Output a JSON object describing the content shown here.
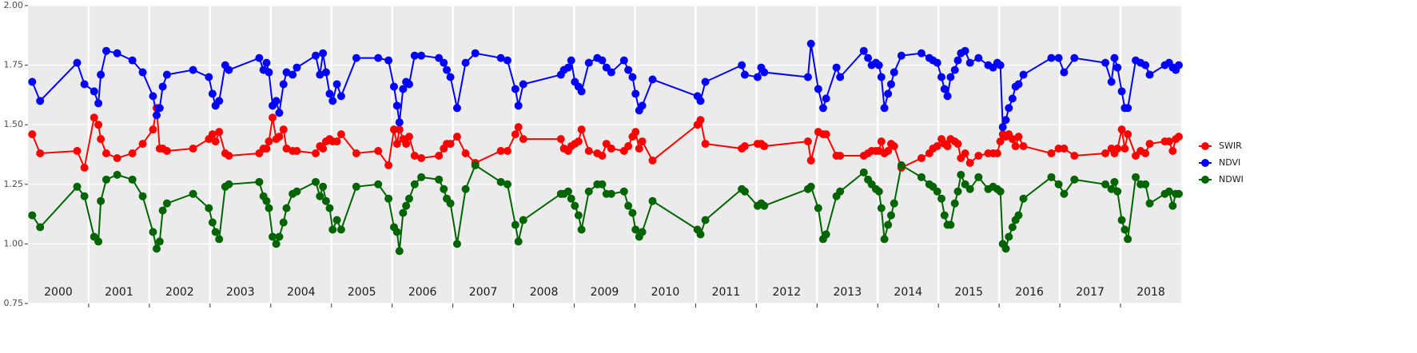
{
  "chart_data": {
    "type": "line",
    "x": [
      2000.07,
      2000.2,
      2000.81,
      2000.93,
      2001.09,
      2001.16,
      2001.2,
      2001.29,
      2001.47,
      2001.72,
      2001.89,
      2002.06,
      2002.12,
      2002.17,
      2002.22,
      2002.29,
      2002.72,
      2002.98,
      2003.04,
      2003.09,
      2003.15,
      2003.25,
      2003.31,
      2003.81,
      2003.88,
      2003.93,
      2003.97,
      2004.03,
      2004.09,
      2004.14,
      2004.21,
      2004.26,
      2004.36,
      2004.43,
      2004.74,
      2004.81,
      2004.86,
      2004.91,
      2004.97,
      2005.02,
      2005.09,
      2005.16,
      2005.41,
      2005.77,
      2005.94,
      2006.03,
      2006.08,
      2006.12,
      2006.18,
      2006.23,
      2006.28,
      2006.37,
      2006.48,
      2006.77,
      2006.85,
      2006.9,
      2006.96,
      2007.07,
      2007.21,
      2007.37,
      2007.79,
      2007.9,
      2008.03,
      2008.08,
      2008.16,
      2008.78,
      2008.83,
      2008.9,
      2008.95,
      2009.01,
      2009.07,
      2009.12,
      2009.24,
      2009.38,
      2009.46,
      2009.53,
      2009.61,
      2009.82,
      2009.89,
      2009.96,
      2010.01,
      2010.07,
      2010.12,
      2010.29,
      2011.03,
      2011.08,
      2011.16,
      2011.76,
      2011.81,
      2012.02,
      2012.08,
      2012.13,
      2012.85,
      2012.9,
      2013.02,
      2013.1,
      2013.15,
      2013.32,
      2013.38,
      2013.77,
      2013.84,
      2013.9,
      2013.97,
      2014.02,
      2014.06,
      2014.11,
      2014.17,
      2014.22,
      2014.27,
      2014.39,
      2014.72,
      2014.85,
      2014.91,
      2014.98,
      2015.05,
      2015.1,
      2015.15,
      2015.2,
      2015.27,
      2015.32,
      2015.37,
      2015.44,
      2015.52,
      2015.66,
      2015.82,
      2015.9,
      2015.97,
      2016.02,
      2016.06,
      2016.11,
      2016.16,
      2016.22,
      2016.27,
      2016.32,
      2016.4,
      2016.86,
      2016.98,
      2017.07,
      2017.24,
      2017.75,
      2017.85,
      2017.9,
      2017.95,
      2018.02,
      2018.07,
      2018.12,
      2018.25,
      2018.33,
      2018.41,
      2018.48,
      2018.73,
      2018.8,
      2018.86,
      2018.91,
      2018.96
    ],
    "series": [
      {
        "name": "SWIR",
        "color": "#ff0000",
        "values": [
          1.46,
          1.38,
          1.39,
          1.32,
          1.53,
          1.5,
          1.44,
          1.38,
          1.36,
          1.38,
          1.42,
          1.48,
          1.57,
          1.4,
          1.4,
          1.39,
          1.4,
          1.44,
          1.46,
          1.43,
          1.47,
          1.38,
          1.37,
          1.38,
          1.4,
          1.4,
          1.43,
          1.53,
          1.44,
          1.45,
          1.48,
          1.4,
          1.39,
          1.39,
          1.38,
          1.41,
          1.4,
          1.43,
          1.44,
          1.43,
          1.43,
          1.46,
          1.38,
          1.39,
          1.33,
          1.48,
          1.42,
          1.48,
          1.44,
          1.42,
          1.45,
          1.37,
          1.36,
          1.37,
          1.4,
          1.42,
          1.42,
          1.45,
          1.38,
          1.34,
          1.39,
          1.39,
          1.46,
          1.49,
          1.44,
          1.44,
          1.4,
          1.39,
          1.41,
          1.42,
          1.43,
          1.48,
          1.39,
          1.38,
          1.37,
          1.42,
          1.4,
          1.39,
          1.41,
          1.45,
          1.47,
          1.4,
          1.43,
          1.35,
          1.5,
          1.52,
          1.42,
          1.4,
          1.41,
          1.42,
          1.42,
          1.41,
          1.43,
          1.35,
          1.47,
          1.46,
          1.46,
          1.37,
          1.37,
          1.37,
          1.38,
          1.39,
          1.39,
          1.39,
          1.43,
          1.38,
          1.39,
          1.42,
          1.41,
          1.32,
          1.36,
          1.38,
          1.4,
          1.41,
          1.44,
          1.42,
          1.41,
          1.44,
          1.43,
          1.42,
          1.36,
          1.38,
          1.34,
          1.37,
          1.38,
          1.38,
          1.38,
          1.43,
          1.46,
          1.45,
          1.46,
          1.44,
          1.41,
          1.45,
          1.41,
          1.38,
          1.4,
          1.4,
          1.37,
          1.38,
          1.4,
          1.38,
          1.4,
          1.48,
          1.4,
          1.46,
          1.37,
          1.39,
          1.38,
          1.42,
          1.43,
          1.43,
          1.39,
          1.44,
          1.45
        ]
      },
      {
        "name": "NDVI",
        "color": "#0000ff",
        "values": [
          1.68,
          1.6,
          1.76,
          1.67,
          1.64,
          1.59,
          1.71,
          1.81,
          1.8,
          1.77,
          1.72,
          1.62,
          1.54,
          1.57,
          1.66,
          1.71,
          1.73,
          1.7,
          1.63,
          1.58,
          1.6,
          1.75,
          1.73,
          1.78,
          1.73,
          1.76,
          1.72,
          1.58,
          1.6,
          1.55,
          1.67,
          1.72,
          1.71,
          1.74,
          1.79,
          1.71,
          1.8,
          1.72,
          1.63,
          1.6,
          1.67,
          1.62,
          1.78,
          1.78,
          1.77,
          1.66,
          1.58,
          1.51,
          1.65,
          1.68,
          1.67,
          1.79,
          1.79,
          1.78,
          1.76,
          1.73,
          1.7,
          1.57,
          1.76,
          1.8,
          1.78,
          1.77,
          1.65,
          1.58,
          1.67,
          1.71,
          1.73,
          1.74,
          1.77,
          1.68,
          1.66,
          1.64,
          1.76,
          1.78,
          1.77,
          1.74,
          1.72,
          1.77,
          1.73,
          1.7,
          1.63,
          1.56,
          1.58,
          1.69,
          1.62,
          1.6,
          1.68,
          1.75,
          1.71,
          1.7,
          1.74,
          1.72,
          1.7,
          1.84,
          1.65,
          1.57,
          1.61,
          1.74,
          1.7,
          1.81,
          1.78,
          1.75,
          1.76,
          1.75,
          1.7,
          1.57,
          1.63,
          1.67,
          1.72,
          1.79,
          1.8,
          1.78,
          1.77,
          1.76,
          1.7,
          1.65,
          1.62,
          1.7,
          1.73,
          1.77,
          1.8,
          1.81,
          1.76,
          1.78,
          1.75,
          1.74,
          1.76,
          1.75,
          1.49,
          1.52,
          1.57,
          1.61,
          1.66,
          1.67,
          1.71,
          1.78,
          1.78,
          1.72,
          1.78,
          1.76,
          1.68,
          1.78,
          1.74,
          1.64,
          1.57,
          1.57,
          1.77,
          1.76,
          1.75,
          1.71,
          1.75,
          1.76,
          1.74,
          1.73,
          1.75
        ]
      },
      {
        "name": "NDWI",
        "color": "#006400",
        "values": [
          1.12,
          1.07,
          1.24,
          1.2,
          1.03,
          1.01,
          1.18,
          1.27,
          1.29,
          1.27,
          1.2,
          1.05,
          0.98,
          1.01,
          1.14,
          1.17,
          1.21,
          1.15,
          1.09,
          1.05,
          1.02,
          1.24,
          1.25,
          1.26,
          1.2,
          1.18,
          1.15,
          1.03,
          1.0,
          1.03,
          1.09,
          1.15,
          1.21,
          1.22,
          1.26,
          1.2,
          1.24,
          1.18,
          1.15,
          1.06,
          1.1,
          1.06,
          1.24,
          1.25,
          1.19,
          1.07,
          1.05,
          0.97,
          1.13,
          1.16,
          1.19,
          1.25,
          1.28,
          1.27,
          1.23,
          1.19,
          1.17,
          1.0,
          1.23,
          1.33,
          1.26,
          1.25,
          1.08,
          1.01,
          1.1,
          1.21,
          1.21,
          1.22,
          1.19,
          1.16,
          1.12,
          1.06,
          1.22,
          1.25,
          1.25,
          1.21,
          1.21,
          1.22,
          1.16,
          1.13,
          1.06,
          1.03,
          1.05,
          1.18,
          1.06,
          1.04,
          1.1,
          1.23,
          1.22,
          1.16,
          1.17,
          1.16,
          1.23,
          1.24,
          1.15,
          1.02,
          1.04,
          1.2,
          1.22,
          1.3,
          1.27,
          1.25,
          1.23,
          1.22,
          1.15,
          1.02,
          1.08,
          1.12,
          1.17,
          1.33,
          1.28,
          1.25,
          1.24,
          1.22,
          1.19,
          1.12,
          1.08,
          1.08,
          1.17,
          1.22,
          1.29,
          1.25,
          1.23,
          1.28,
          1.23,
          1.24,
          1.23,
          1.22,
          1.0,
          0.98,
          1.03,
          1.07,
          1.1,
          1.12,
          1.19,
          1.28,
          1.25,
          1.21,
          1.27,
          1.25,
          1.23,
          1.26,
          1.22,
          1.1,
          1.06,
          1.02,
          1.28,
          1.25,
          1.25,
          1.17,
          1.21,
          1.22,
          1.16,
          1.21,
          1.21
        ]
      }
    ],
    "xlim": [
      2000,
      2019
    ],
    "ylim": [
      0.75,
      2.0
    ],
    "yticks": [
      {
        "value": 0.75,
        "label": "0.75"
      },
      {
        "value": 1.0,
        "label": "1.00"
      },
      {
        "value": 1.25,
        "label": "1.25"
      },
      {
        "value": 1.5,
        "label": "1.50"
      },
      {
        "value": 1.75,
        "label": "1.75"
      },
      {
        "value": 2.0,
        "label": "2.00"
      }
    ],
    "year_panels": [
      2000,
      2001,
      2002,
      2003,
      2004,
      2005,
      2006,
      2007,
      2008,
      2009,
      2010,
      2011,
      2012,
      2013,
      2014,
      2015,
      2016,
      2017,
      2018
    ],
    "grid": true,
    "legend": "right"
  }
}
